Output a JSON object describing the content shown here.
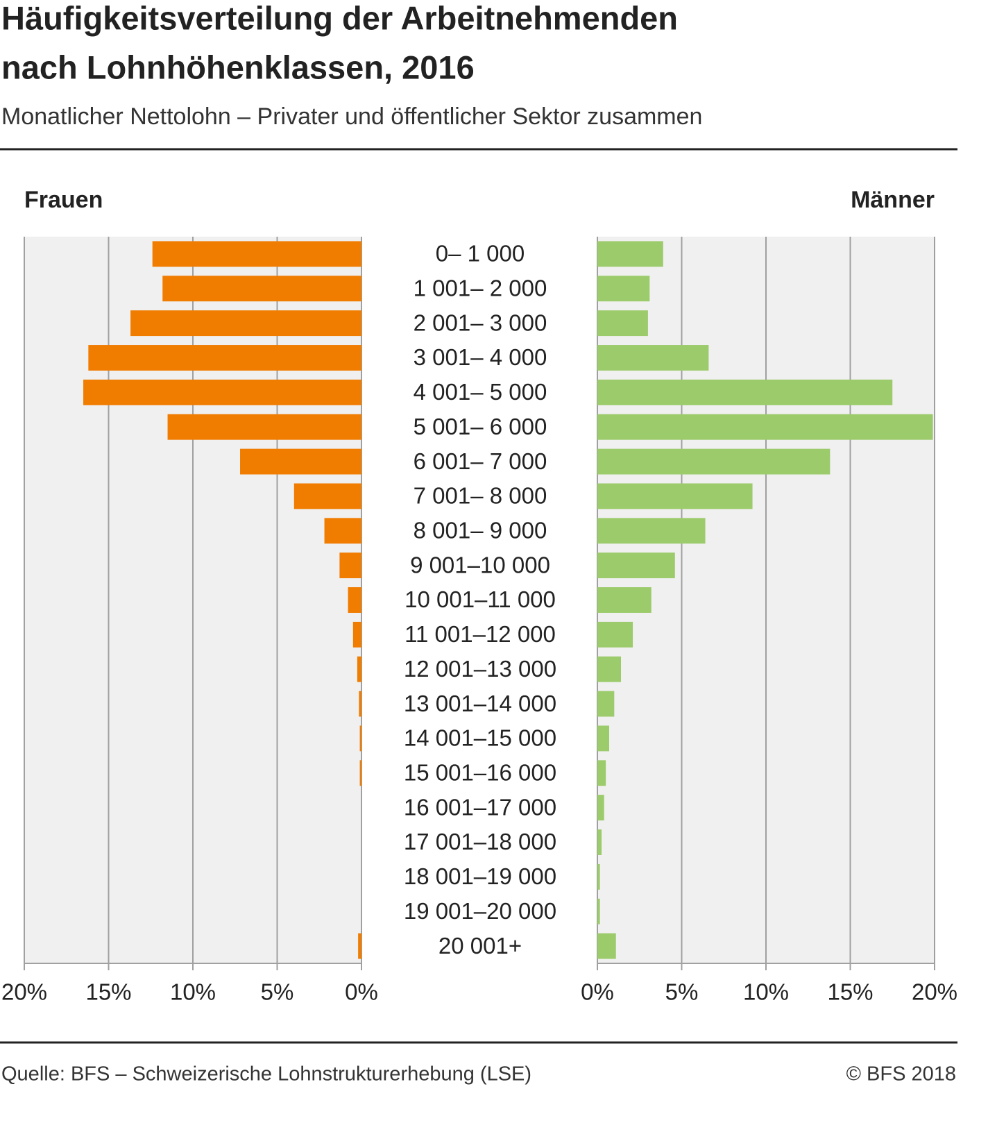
{
  "chart_data": {
    "type": "bar",
    "orientation": "horizontal",
    "title": "Häufigkeitsverteilung der Arbeitnehmenden nach Lohnhöhenklassen, 2016",
    "title_lines": [
      "Häufigkeitsverteilung der Arbeitnehmenden",
      "nach Lohnhöhenklassen, 2016"
    ],
    "subtitle": "Monatlicher Nettolohn – Privater und öffentlicher Sektor zusammen",
    "categories": [
      "0– 1 000",
      "1 001– 2 000",
      "2 001– 3 000",
      "3 001– 4 000",
      "4 001– 5 000",
      "5 001– 6 000",
      "6 001– 7 000",
      "7 001– 8 000",
      "8 001– 9 000",
      "9 001–10 000",
      "10 001–11 000",
      "11 001–12 000",
      "12 001–13 000",
      "13 001–14 000",
      "14 001–15 000",
      "15 001–16 000",
      "16 001–17 000",
      "17 001–18 000",
      "18 001–19 000",
      "19 001–20 000",
      "20 001+"
    ],
    "series": [
      {
        "name": "Frauen",
        "color": "#f07c00",
        "values": [
          12.4,
          11.8,
          13.7,
          16.2,
          16.5,
          11.5,
          7.2,
          4.0,
          2.2,
          1.3,
          0.8,
          0.5,
          0.25,
          0.15,
          0.1,
          0.1,
          0,
          0,
          0,
          0,
          0.2
        ]
      },
      {
        "name": "Männer",
        "color": "#9ccb6b",
        "values": [
          3.9,
          3.1,
          3.0,
          6.6,
          17.5,
          19.9,
          13.8,
          9.2,
          6.4,
          4.6,
          3.2,
          2.1,
          1.4,
          1.0,
          0.7,
          0.5,
          0.4,
          0.25,
          0.15,
          0.15,
          1.1
        ]
      }
    ],
    "xlim": [
      0,
      20
    ],
    "xticks": [
      {
        "value": 0,
        "label": "0%"
      },
      {
        "value": 5,
        "label": "5%"
      },
      {
        "value": 10,
        "label": "10%"
      },
      {
        "value": 15,
        "label": "15%"
      },
      {
        "value": 20,
        "label": "20%"
      }
    ],
    "grid": true,
    "source": "Quelle: BFS – Schweizerische Lohnstrukturerhebung (LSE)",
    "copyright": "© BFS 2018"
  }
}
